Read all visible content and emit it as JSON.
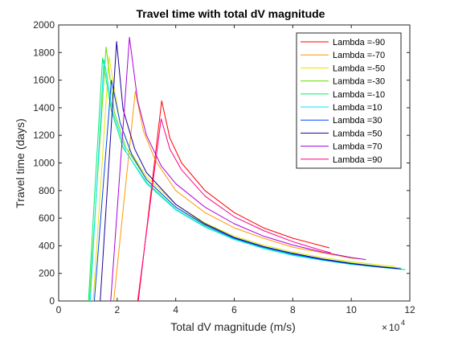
{
  "chart_data": {
    "type": "line",
    "title": "Travel time with total dV magnitude",
    "xlabel": "Total dV magnitude (m/s)",
    "ylabel": "Travel time (days)",
    "x_multiplier_label": "×",
    "x_multiplier_base": "10",
    "x_multiplier_exp": "4",
    "xlim": [
      0,
      12
    ],
    "ylim": [
      0,
      2000
    ],
    "xticks": [
      "0",
      "2",
      "4",
      "6",
      "8",
      "10",
      "12"
    ],
    "yticks": [
      "0",
      "200",
      "400",
      "600",
      "800",
      "1000",
      "1200",
      "1400",
      "1600",
      "1800",
      "2000"
    ],
    "grid": false,
    "legend_position": "top-right",
    "x_units_note": "x values in units of 10^4 m/s",
    "series": [
      {
        "name": "Lambda =-90",
        "color": "#ff0000",
        "points": [
          [
            2.72,
            0
          ],
          [
            3.52,
            1450
          ],
          [
            3.8,
            1180
          ],
          [
            4.2,
            1000
          ],
          [
            5.0,
            800
          ],
          [
            6.0,
            640
          ],
          [
            7.0,
            530
          ],
          [
            8.0,
            455
          ],
          [
            9.25,
            385
          ]
        ]
      },
      {
        "name": "Lambda =-70",
        "color": "#ff9900",
        "points": [
          [
            1.88,
            0
          ],
          [
            2.62,
            1520
          ],
          [
            2.9,
            1230
          ],
          [
            3.3,
            1020
          ],
          [
            4.0,
            800
          ],
          [
            5.0,
            640
          ],
          [
            6.0,
            530
          ],
          [
            7.0,
            455
          ],
          [
            8.0,
            390
          ],
          [
            9.0,
            350
          ],
          [
            10.0,
            310
          ],
          [
            10.3,
            305
          ]
        ]
      },
      {
        "name": "Lambda =-50",
        "color": "#e6e600",
        "points": [
          [
            1.18,
            0
          ],
          [
            1.72,
            1770
          ],
          [
            2.1,
            1290
          ],
          [
            2.5,
            1070
          ],
          [
            3.0,
            900
          ],
          [
            4.0,
            700
          ],
          [
            5.0,
            565
          ],
          [
            6.0,
            470
          ],
          [
            7.0,
            405
          ],
          [
            8.0,
            355
          ],
          [
            9.0,
            315
          ],
          [
            10.0,
            285
          ],
          [
            11.0,
            260
          ],
          [
            11.5,
            250
          ]
        ]
      },
      {
        "name": "Lambda =-30",
        "color": "#66dd00",
        "points": [
          [
            1.05,
            0
          ],
          [
            1.62,
            1840
          ],
          [
            1.9,
            1370
          ],
          [
            2.3,
            1110
          ],
          [
            3.0,
            880
          ],
          [
            4.0,
            680
          ],
          [
            5.0,
            555
          ],
          [
            6.0,
            460
          ],
          [
            7.0,
            395
          ],
          [
            8.0,
            345
          ],
          [
            9.0,
            305
          ],
          [
            10.0,
            275
          ],
          [
            11.0,
            250
          ],
          [
            11.7,
            238
          ]
        ]
      },
      {
        "name": "Lambda =-10",
        "color": "#00ee66",
        "points": [
          [
            1.02,
            0
          ],
          [
            1.5,
            1760
          ],
          [
            1.8,
            1380
          ],
          [
            2.2,
            1110
          ],
          [
            3.0,
            860
          ],
          [
            4.0,
            665
          ],
          [
            5.0,
            540
          ],
          [
            6.0,
            450
          ],
          [
            7.0,
            385
          ],
          [
            8.0,
            335
          ],
          [
            9.0,
            300
          ],
          [
            10.0,
            270
          ],
          [
            11.0,
            245
          ],
          [
            11.85,
            228
          ]
        ]
      },
      {
        "name": "Lambda =10",
        "color": "#00e6ff",
        "points": [
          [
            1.08,
            0
          ],
          [
            1.55,
            1750
          ],
          [
            1.85,
            1370
          ],
          [
            2.3,
            1080
          ],
          [
            3.0,
            850
          ],
          [
            4.0,
            660
          ],
          [
            5.0,
            535
          ],
          [
            6.0,
            445
          ],
          [
            7.0,
            380
          ],
          [
            8.0,
            330
          ],
          [
            9.0,
            295
          ],
          [
            10.0,
            265
          ],
          [
            11.0,
            243
          ],
          [
            11.8,
            228
          ]
        ]
      },
      {
        "name": "Lambda =30",
        "color": "#0044ff",
        "points": [
          [
            1.22,
            0
          ],
          [
            1.8,
            1600
          ],
          [
            2.1,
            1290
          ],
          [
            2.5,
            1060
          ],
          [
            3.0,
            880
          ],
          [
            4.0,
            680
          ],
          [
            5.0,
            550
          ],
          [
            6.0,
            455
          ],
          [
            7.0,
            390
          ],
          [
            8.0,
            340
          ],
          [
            9.0,
            300
          ],
          [
            10.0,
            270
          ],
          [
            11.0,
            245
          ],
          [
            11.7,
            232
          ]
        ]
      },
      {
        "name": "Lambda =50",
        "color": "#1a0099",
        "points": [
          [
            1.42,
            0
          ],
          [
            1.98,
            1880
          ],
          [
            2.2,
            1390
          ],
          [
            2.6,
            1100
          ],
          [
            3.0,
            930
          ],
          [
            4.0,
            700
          ],
          [
            5.0,
            560
          ],
          [
            6.0,
            460
          ],
          [
            7.0,
            395
          ],
          [
            8.0,
            345
          ],
          [
            9.0,
            305
          ],
          [
            10.0,
            272
          ],
          [
            11.0,
            248
          ],
          [
            11.6,
            235
          ]
        ]
      },
      {
        "name": "Lambda =70",
        "color": "#aa00dd",
        "points": [
          [
            1.78,
            0
          ],
          [
            2.42,
            1910
          ],
          [
            2.7,
            1450
          ],
          [
            3.0,
            1200
          ],
          [
            3.5,
            980
          ],
          [
            4.0,
            850
          ],
          [
            5.0,
            680
          ],
          [
            6.0,
            560
          ],
          [
            7.0,
            470
          ],
          [
            8.0,
            405
          ],
          [
            9.0,
            355
          ],
          [
            10.0,
            315
          ],
          [
            10.5,
            300
          ]
        ]
      },
      {
        "name": "Lambda =90",
        "color": "#ff0088",
        "points": [
          [
            2.7,
            0
          ],
          [
            3.5,
            1320
          ],
          [
            3.8,
            1100
          ],
          [
            4.2,
            950
          ],
          [
            5.0,
            760
          ],
          [
            6.0,
            610
          ],
          [
            7.0,
            510
          ],
          [
            8.0,
            430
          ],
          [
            9.0,
            365
          ],
          [
            9.3,
            350
          ]
        ]
      }
    ]
  }
}
